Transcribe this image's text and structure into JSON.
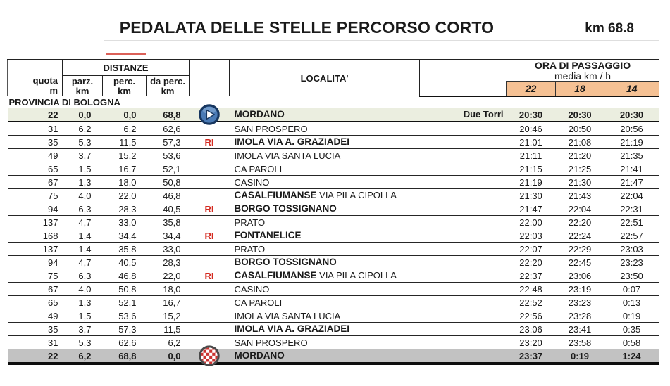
{
  "title": "PEDALATA DELLE STELLE PERCORSO CORTO",
  "total_distance": "km 68.8",
  "table": {
    "header": {
      "quota_label": "quota",
      "quota_unit": "m",
      "distanze_label": "DISTANZE",
      "sub_cols": [
        {
          "label": "parz.",
          "unit": "km"
        },
        {
          "label": "perc.",
          "unit": "km"
        },
        {
          "label": "da perc.",
          "unit": "km"
        }
      ],
      "localita_label": "LOCALITA'",
      "ora_label": "ORA DI PASSAGGIO",
      "media_label": "media km / h",
      "speeds": [
        "22",
        "18",
        "14"
      ]
    },
    "section_label": "PROVINCIA DI BOLOGNA",
    "rows": [
      {
        "quota": "22",
        "parz": "0,0",
        "perc": "0,0",
        "daperc": "68,8",
        "ri": "",
        "icon": "start-flag-icon",
        "name": "MORDANO",
        "bold": true,
        "suffix": "",
        "note": "Due Torri",
        "times": [
          "20:30",
          "20:30",
          "20:30"
        ],
        "style": "start"
      },
      {
        "quota": "31",
        "parz": "6,2",
        "perc": "6,2",
        "daperc": "62,6",
        "ri": "",
        "name": "SAN PROSPERO",
        "bold": false,
        "times": [
          "20:46",
          "20:50",
          "20:56"
        ]
      },
      {
        "quota": "35",
        "parz": "5,3",
        "perc": "11,5",
        "daperc": "57,3",
        "ri": "RI",
        "name": "IMOLA VIA A. GRAZIADEI",
        "bold": true,
        "times": [
          "21:01",
          "21:08",
          "21:19"
        ]
      },
      {
        "quota": "49",
        "parz": "3,7",
        "perc": "15,2",
        "daperc": "53,6",
        "ri": "",
        "name": "IMOLA VIA SANTA LUCIA",
        "bold": false,
        "times": [
          "21:11",
          "21:20",
          "21:35"
        ]
      },
      {
        "quota": "65",
        "parz": "1,5",
        "perc": "16,7",
        "daperc": "52,1",
        "ri": "",
        "name": "CA PAROLI",
        "bold": false,
        "times": [
          "21:15",
          "21:25",
          "21:41"
        ]
      },
      {
        "quota": "67",
        "parz": "1,3",
        "perc": "18,0",
        "daperc": "50,8",
        "ri": "",
        "name": "CASINO",
        "bold": false,
        "times": [
          "21:19",
          "21:30",
          "21:47"
        ]
      },
      {
        "quota": "75",
        "parz": "4,0",
        "perc": "22,0",
        "daperc": "46,8",
        "ri": "",
        "name": "CASALFIUMANSE",
        "bold": true,
        "suffix": " VIA PILA CIPOLLA",
        "times": [
          "21:30",
          "21:43",
          "22:04"
        ]
      },
      {
        "quota": "94",
        "parz": "6,3",
        "perc": "28,3",
        "daperc": "40,5",
        "ri": "RI",
        "name": "BORGO TOSSIGNANO",
        "bold": true,
        "times": [
          "21:47",
          "22:04",
          "22:31"
        ]
      },
      {
        "quota": "137",
        "parz": "4,7",
        "perc": "33,0",
        "daperc": "35,8",
        "ri": "",
        "name": "PRATO",
        "bold": false,
        "times": [
          "22:00",
          "22:20",
          "22:51"
        ]
      },
      {
        "quota": "168",
        "parz": "1,4",
        "perc": "34,4",
        "daperc": "34,4",
        "ri": "RI",
        "name": "FONTANELICE",
        "bold": true,
        "times": [
          "22:03",
          "22:24",
          "22:57"
        ]
      },
      {
        "quota": "137",
        "parz": "1,4",
        "perc": "35,8",
        "daperc": "33,0",
        "ri": "",
        "name": "PRATO",
        "bold": false,
        "times": [
          "22:07",
          "22:29",
          "23:03"
        ]
      },
      {
        "quota": "94",
        "parz": "4,7",
        "perc": "40,5",
        "daperc": "28,3",
        "ri": "",
        "name": "BORGO TOSSIGNANO",
        "bold": true,
        "times": [
          "22:20",
          "22:45",
          "23:23"
        ]
      },
      {
        "quota": "75",
        "parz": "6,3",
        "perc": "46,8",
        "daperc": "22,0",
        "ri": "RI",
        "name": "CASALFIUMANSE",
        "bold": true,
        "suffix": " VIA PILA CIPOLLA",
        "times": [
          "22:37",
          "23:06",
          "23:50"
        ]
      },
      {
        "quota": "67",
        "parz": "4,0",
        "perc": "50,8",
        "daperc": "18,0",
        "ri": "",
        "name": "CASINO",
        "bold": false,
        "times": [
          "22:48",
          "23:19",
          "0:07"
        ]
      },
      {
        "quota": "65",
        "parz": "1,3",
        "perc": "52,1",
        "daperc": "16,7",
        "ri": "",
        "name": "CA PAROLI",
        "bold": false,
        "times": [
          "22:52",
          "23:23",
          "0:13"
        ]
      },
      {
        "quota": "49",
        "parz": "1,5",
        "perc": "53,6",
        "daperc": "15,2",
        "ri": "",
        "name": "IMOLA VIA SANTA LUCIA",
        "bold": false,
        "times": [
          "22:56",
          "23:28",
          "0:19"
        ]
      },
      {
        "quota": "35",
        "parz": "3,7",
        "perc": "57,3",
        "daperc": "11,5",
        "ri": "",
        "name": "IMOLA VIA A. GRAZIADEI",
        "bold": true,
        "times": [
          "23:06",
          "23:41",
          "0:35"
        ]
      },
      {
        "quota": "31",
        "parz": "5,3",
        "perc": "62,6",
        "daperc": "6,2",
        "ri": "",
        "name": "SAN PROSPERO",
        "bold": false,
        "times": [
          "23:20",
          "23:58",
          "0:58"
        ]
      },
      {
        "quota": "22",
        "parz": "6,2",
        "perc": "68,8",
        "daperc": "0,0",
        "ri": "",
        "icon": "finish-flag-icon",
        "name": "MORDANO",
        "bold": true,
        "times": [
          "23:37",
          "0:19",
          "1:24"
        ],
        "style": "finish"
      }
    ]
  },
  "colors": {
    "speed_header_bg": "#f5c194",
    "start_row_bg": "#ebeee0",
    "finish_row_bg": "#c2c2c2",
    "ri_red": "#d42a20",
    "red_dash": "#cf2b20"
  }
}
